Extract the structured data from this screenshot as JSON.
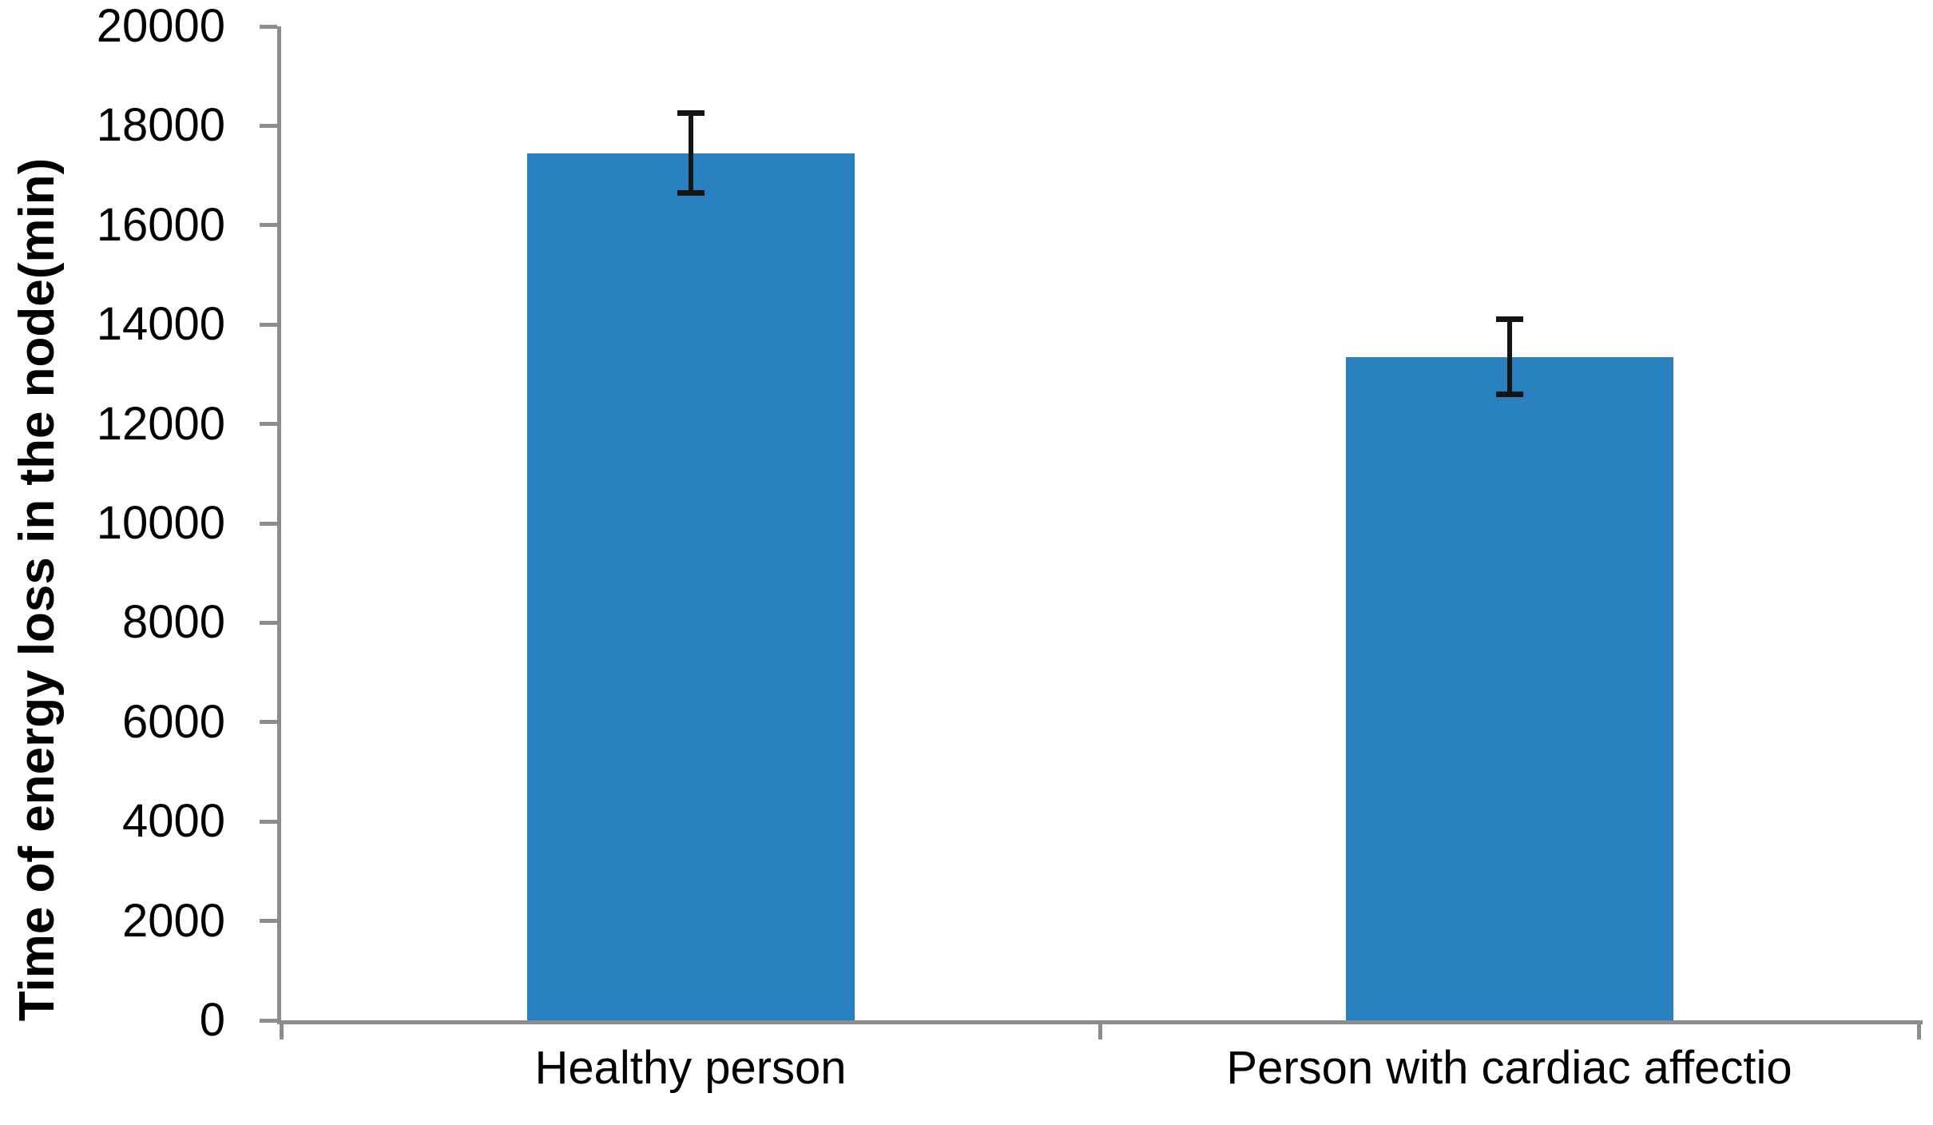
{
  "chart_data": {
    "type": "bar",
    "title": "",
    "xlabel": "",
    "ylabel": "Time of energy loss in the node(min)",
    "categories": [
      "Healthy person",
      "Person with cardiac affectio"
    ],
    "series": [
      {
        "name": "Time of energy loss in the node",
        "values": [
          17450,
          13350
        ],
        "error_plus": [
          800,
          750
        ],
        "error_minus": [
          800,
          750
        ]
      }
    ],
    "ylim": [
      0,
      20000
    ],
    "ytick_step": 2000,
    "ytick_labels": [
      "0",
      "2000",
      "4000",
      "6000",
      "8000",
      "10000",
      "12000",
      "14000",
      "16000",
      "18000",
      "20000"
    ],
    "grid": false,
    "legend": false,
    "colors": {
      "bar": "#2880BE",
      "axis": "#8C8C8C",
      "error_bar": "#141414",
      "text": "#000000",
      "background": "#FFFFFF"
    }
  }
}
